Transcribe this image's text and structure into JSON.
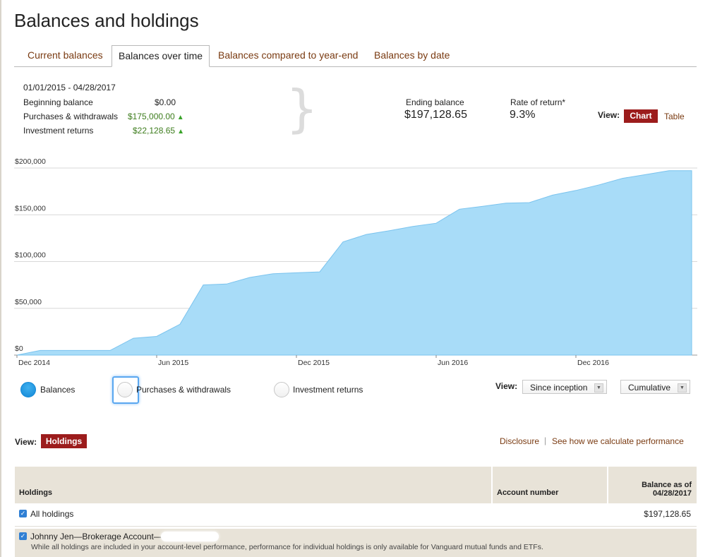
{
  "page": {
    "title": "Balances and holdings"
  },
  "tabs": [
    {
      "label": "Current balances",
      "active": false
    },
    {
      "label": "Balances over time",
      "active": true
    },
    {
      "label": "Balances compared to year-end",
      "active": false
    },
    {
      "label": "Balances by date",
      "active": false
    }
  ],
  "summary": {
    "date_range": "01/01/2015 - 04/28/2017",
    "beginning_balance_label": "Beginning balance",
    "beginning_balance_value": "$0.00",
    "purchases_label": "Purchases & withdrawals",
    "purchases_value": "$175,000.00",
    "investment_returns_label": "Investment returns",
    "investment_returns_value": "$22,128.65",
    "ending_balance_label": "Ending balance",
    "ending_balance_value": "$197,128.65",
    "rate_of_return_label": "Rate of return*",
    "rate_of_return_value": "9.3%"
  },
  "view_toggle": {
    "label": "View:",
    "chart_label": "Chart",
    "table_label": "Table",
    "selected": "Chart"
  },
  "colors": {
    "area_fill": "#a8dcf8",
    "area_line": "#7ac3ee",
    "accent": "#9c1c1c",
    "link": "#7a3b12",
    "positive": "#3e7d1e"
  },
  "chart_data": {
    "type": "area",
    "series": [
      {
        "name": "Balances"
      }
    ],
    "x_tick_labels": [
      "Dec 2014",
      "Jun 2015",
      "Dec 2015",
      "Jun 2016",
      "Dec 2016"
    ],
    "y_tick_labels": [
      "$0",
      "$50,000",
      "$100,000",
      "$150,000",
      "$200,000"
    ],
    "y_ticks": [
      0,
      50000,
      100000,
      150000,
      200000
    ],
    "ylim": [
      0,
      200000
    ],
    "x_months_from_dec_2014": [
      0,
      1,
      2,
      3,
      4,
      5,
      6,
      7,
      8,
      9,
      10,
      11,
      12,
      13,
      14,
      15,
      16,
      17,
      18,
      19,
      20,
      21,
      22,
      23,
      24,
      25,
      26,
      27,
      28
    ],
    "values": [
      0,
      5000,
      5000,
      5000,
      5000,
      18000,
      20000,
      33000,
      75000,
      76000,
      83000,
      87000,
      88000,
      89000,
      121000,
      129000,
      133000,
      137500,
      141000,
      156000,
      159000,
      162500,
      163000,
      171000,
      176000,
      182000,
      189000,
      193000,
      197128.65
    ],
    "grid": true,
    "x_range": [
      "Dec 2014",
      "Apr 2017"
    ]
  },
  "legend": [
    {
      "label": "Balances",
      "selected": true
    },
    {
      "label": "Purchases & withdrawals",
      "selected": false
    },
    {
      "label": "Investment returns",
      "selected": false
    }
  ],
  "chart_controls": {
    "view_label": "View:",
    "period_value": "Since inception",
    "mode_value": "Cumulative"
  },
  "holdings_view": {
    "label": "View:",
    "button_label": "Holdings"
  },
  "links": {
    "disclosure": "Disclosure",
    "separator": "|",
    "performance": "See how we calculate performance"
  },
  "holdings_table": {
    "headers": {
      "holdings": "Holdings",
      "account_number": "Account number",
      "balance_line1": "Balance as of",
      "balance_line2": "04/28/2017"
    },
    "rows": [
      {
        "label": "All holdings",
        "account_number": "",
        "balance": "$197,128.65",
        "checked": true
      },
      {
        "label": "Johnny Jen—Brokerage Account—",
        "account_number": "",
        "balance": "",
        "checked": true,
        "note": "While all holdings are included in your account-level performance, performance for individual holdings is only available for Vanguard mutual funds and ETFs."
      }
    ]
  }
}
